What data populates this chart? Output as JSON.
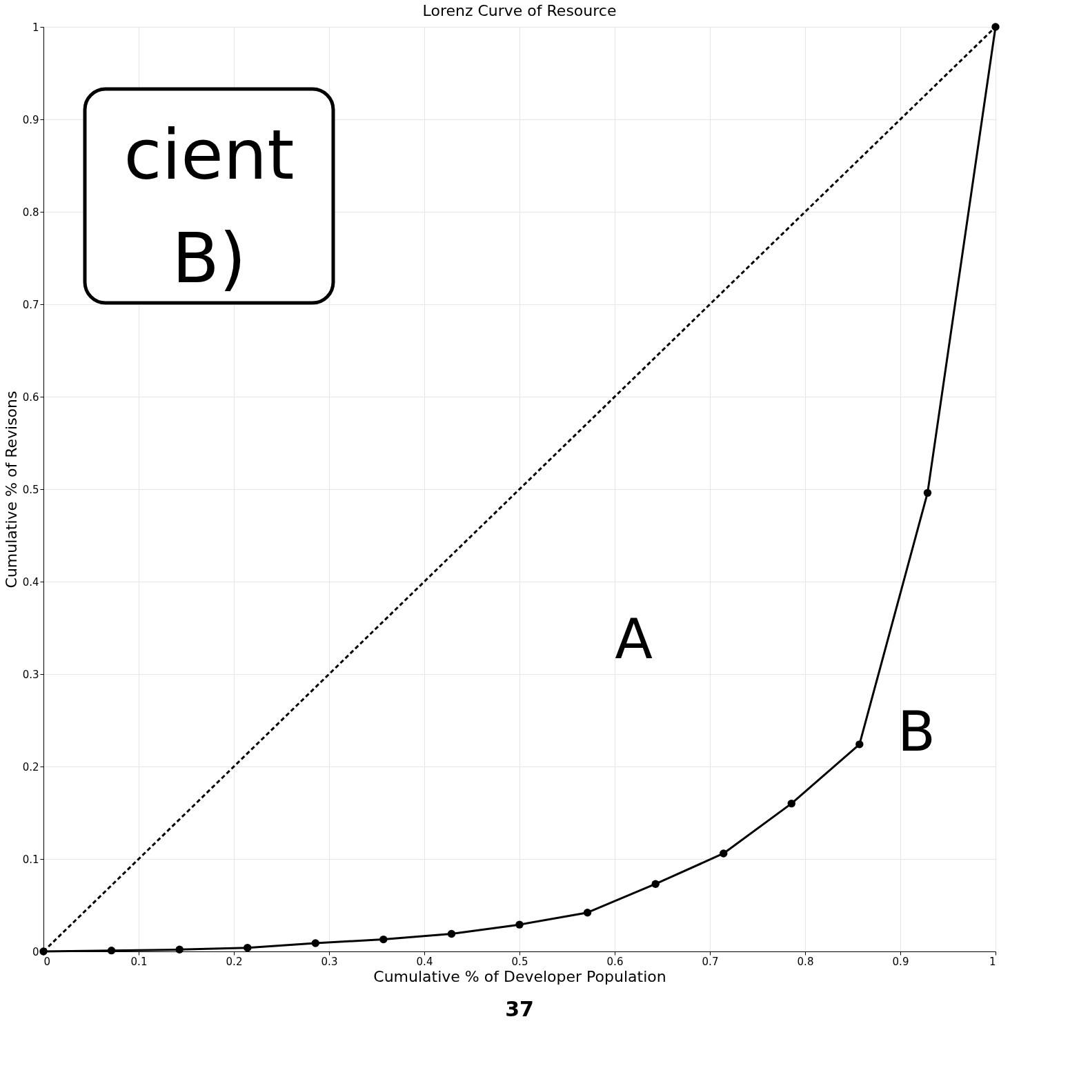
{
  "chart_data": {
    "type": "line",
    "title": "Lorenz Curve of Resource",
    "xlabel": "Cumulative % of Developer Population",
    "ylabel": "Cumulative % of Revisons",
    "series": [
      {
        "color": "#000000",
        "marker": "circle",
        "line_style": "solid",
        "x": [
          0,
          0.0714,
          0.1429,
          0.2143,
          0.2857,
          0.3571,
          0.4286,
          0.5,
          0.5714,
          0.6429,
          0.7143,
          0.7857,
          0.8571,
          0.9286,
          1
        ],
        "values": [
          0,
          0.001,
          0.002,
          0.004,
          0.009,
          0.013,
          0.019,
          0.029,
          0.042,
          0.073,
          0.106,
          0.16,
          0.224,
          0.496,
          1
        ]
      },
      {
        "color": "#000000",
        "marker": "none",
        "line_style": "dashed",
        "x": [
          0,
          1
        ],
        "values": [
          0,
          1
        ]
      }
    ],
    "annotations": [
      "A",
      "B",
      "cient",
      "B)",
      "37"
    ],
    "xlim": [
      0,
      1
    ],
    "ylim": [
      0,
      1
    ],
    "xticks": [
      0,
      0.1,
      0.2,
      0.3,
      0.4,
      0.5,
      0.6,
      0.7,
      0.8,
      0.9,
      1
    ],
    "yticks": [
      0,
      0.1,
      0.2,
      0.3,
      0.4,
      0.5,
      0.6,
      0.7,
      0.8,
      0.9,
      1
    ],
    "grid": true
  }
}
